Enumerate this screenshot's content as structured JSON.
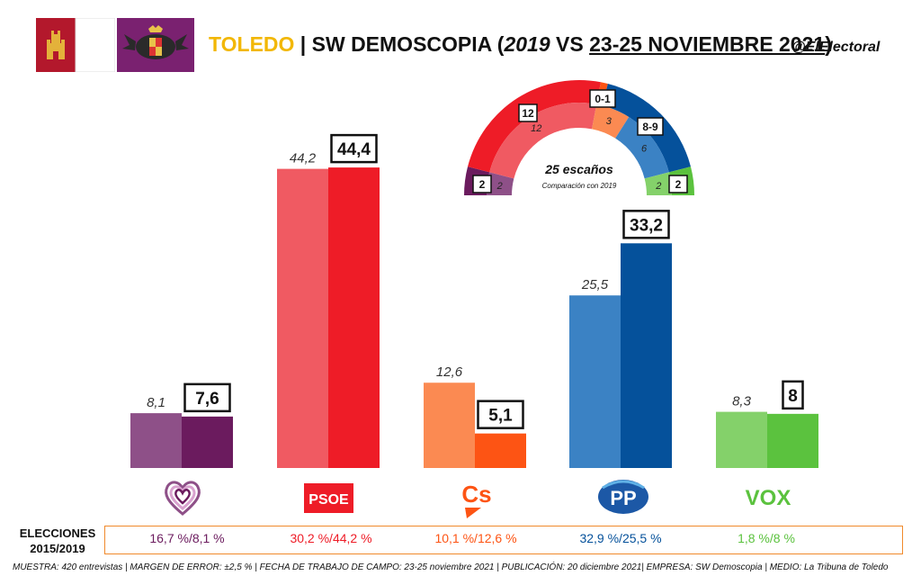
{
  "header": {
    "city": "TOLEDO",
    "sep": " | SW DEMOSCOPIA (",
    "year": "2019",
    "vs": " VS ",
    "date": "23-25 NOVIEMBRE 2021",
    "close": ")",
    "handle": "@ElElectoral"
  },
  "chart_data": [
    {
      "type": "bar",
      "categories": [
        "Unidas Podemos",
        "PSOE",
        "Cs",
        "PP",
        "VOX"
      ],
      "series": [
        {
          "values": [
            8.1,
            44.2,
            12.6,
            25.5,
            8.3
          ],
          "labels": [
            "8,1",
            "44,2",
            "12,6",
            "25,5",
            "8,3"
          ]
        },
        {
          "values": [
            7.6,
            44.4,
            5.1,
            33.2,
            8.0
          ],
          "labels": [
            "7,6",
            "44,4",
            "5,1",
            "33,2",
            "8"
          ]
        }
      ],
      "colors_prev": [
        "#8e5088",
        "#f05a62",
        "#fb8a52",
        "#3b82c4",
        "#84d16a"
      ],
      "colors_curr": [
        "#6b1b5e",
        "#ee1c27",
        "#fd5414",
        "#05519b",
        "#5bc23e"
      ],
      "ylim": [
        0,
        50
      ]
    },
    {
      "type": "pie",
      "title": "25 escaños",
      "subtitle": "Comparación con 2019",
      "categories": [
        "Unidas Podemos",
        "PSOE",
        "Cs",
        "PP",
        "VOX"
      ],
      "series": [
        {
          "values": [
            2,
            12,
            0.5,
            8.5,
            2
          ],
          "labels": [
            "2",
            "12",
            "0-1",
            "8-9",
            "2"
          ]
        },
        {
          "values": [
            2,
            12,
            3,
            6,
            2
          ],
          "labels": [
            "2",
            "12",
            "3",
            "6",
            "2"
          ]
        }
      ],
      "colors_outer": [
        "#6b1b5e",
        "#ee1c27",
        "#fd5414",
        "#05519b",
        "#5bc23e"
      ],
      "colors_inner": [
        "#8e5088",
        "#f05a62",
        "#fb8a52",
        "#3b82c4",
        "#84d16a"
      ]
    }
  ],
  "parties": [
    {
      "name": "Unidas Podemos",
      "icon": "podemos-heart-logo",
      "result": "16,7 %/8,1 %",
      "color": "#6b1b5e"
    },
    {
      "name": "PSOE",
      "icon": "psoe-logo",
      "result": "30,2 %/44,2 %",
      "color": "#ee1c27"
    },
    {
      "name": "Cs",
      "icon": "cs-logo",
      "result": "10,1 %/12,6 %",
      "color": "#fd5414"
    },
    {
      "name": "PP",
      "icon": "pp-logo",
      "result": "32,9 %/25,5 %",
      "color": "#05519b"
    },
    {
      "name": "VOX",
      "icon": "vox-logo",
      "result": "1,8 %/8 %",
      "color": "#5bc23e"
    }
  ],
  "logos": {
    "psoe": "PSOE",
    "cs": "Cs",
    "pp": "PP",
    "vox": "VOX"
  },
  "elections_label": "ELECCIONES 2015/2019",
  "footer": "MUESTRA: 420 entrevistas | MARGEN DE ERROR: ±2,5 % | FECHA DE TRABAJO DE CAMPO: 23-25 noviembre 2021 | PUBLICACIÓN: 20 diciembre 2021| EMPRESA: SW Demoscopia | MEDIO: La Tribuna de Toledo"
}
